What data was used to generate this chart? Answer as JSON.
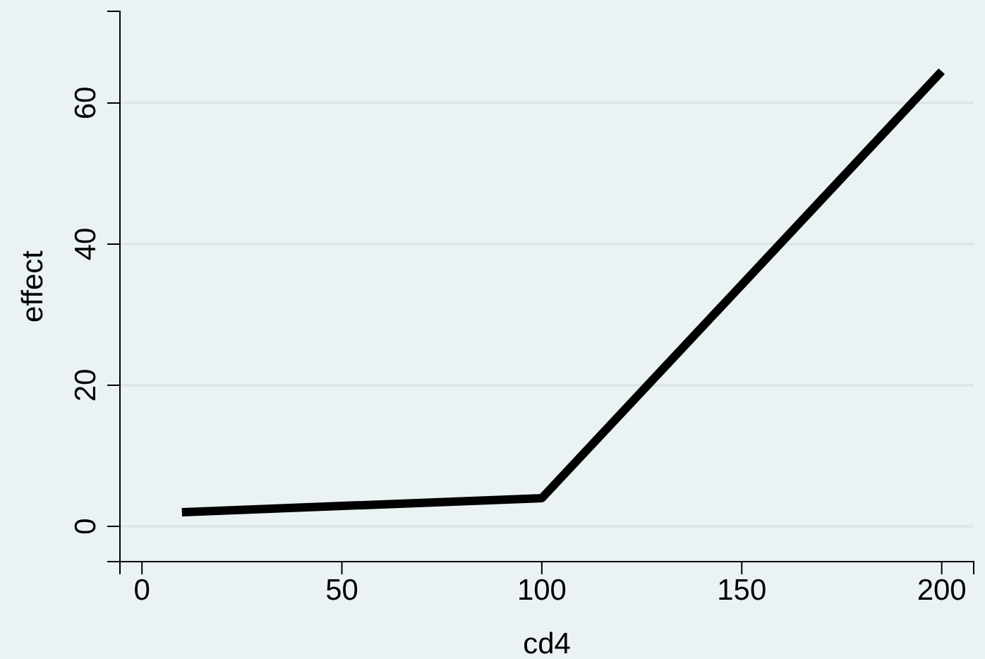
{
  "chart_data": {
    "type": "line",
    "xlabel": "cd4",
    "ylabel": "effect",
    "x": [
      10,
      100,
      200
    ],
    "series": [
      {
        "color": "#000000",
        "values": [
          2,
          4,
          64.5
        ]
      }
    ],
    "xlim": [
      -5.5,
      208
    ],
    "ylim": [
      -5,
      73
    ],
    "xticks": [
      0,
      50,
      100,
      150,
      200
    ],
    "yticks": [
      0,
      20,
      40,
      60
    ],
    "grid": "y",
    "marker": "none",
    "line_style": "solid"
  }
}
